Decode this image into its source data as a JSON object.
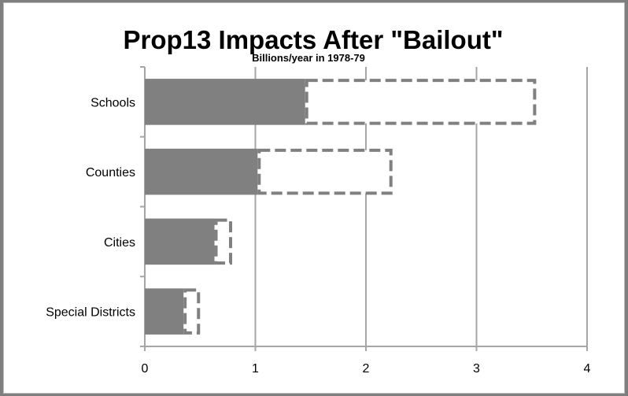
{
  "chart_data": {
    "type": "bar",
    "orientation": "horizontal",
    "stacked": true,
    "title": "Prop13 Impacts After \"Bailout\"",
    "subtitle": "Billions/year  in 1978-79",
    "categories": [
      "Schools",
      "Counties",
      "Cities",
      "Special Districts"
    ],
    "series": [
      {
        "values": [
          1.45,
          1.02,
          0.63,
          0.35
        ],
        "style": "solid",
        "color": "#808080"
      },
      {
        "values": [
          2.09,
          1.22,
          0.16,
          0.15
        ],
        "style": "dashed-outline",
        "color": "#808080"
      }
    ],
    "x_ticks": [
      0,
      1,
      2,
      3,
      4
    ],
    "xlim": [
      0,
      4
    ],
    "grid": "vertical",
    "legend": "none",
    "colors": {
      "bar": "#808080",
      "grid": "#a6a6a6",
      "background": "#ffffff",
      "outer": "#7f7f7f"
    }
  }
}
